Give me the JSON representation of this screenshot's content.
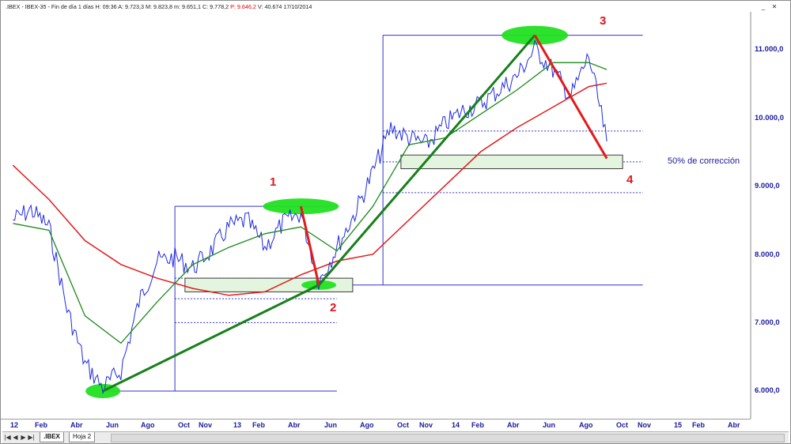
{
  "window": {
    "title_parts": [
      ".IBEX - IBEX-35 - Fin de día 1 días",
      "H: 09:36",
      "A: 9.723,3",
      "M: 9.823,8",
      "m: 9.651,1",
      "C: 9.778,2",
      "P: 9.646,2",
      "V: 40.674",
      "17/10/2014"
    ],
    "highlight_index": 6,
    "minimize_glyph": "_",
    "close_glyph": "✕"
  },
  "y_axis": {
    "tick_labels": [
      "11.000,0",
      "10.000,0",
      "9.000,0",
      "8.000,0",
      "7.000,0",
      "6.000,0"
    ]
  },
  "x_axis": {
    "tick_labels": [
      "12",
      "Feb",
      "Abr",
      "Jun",
      "Ago",
      "Oct",
      "Nov",
      "13",
      "Feb",
      "Abr",
      "Jun",
      "Ago",
      "Oct",
      "Nov",
      "14",
      "Feb",
      "Abr",
      "Jun",
      "Ago",
      "Oct",
      "Nov",
      "15",
      "Feb",
      "Abr"
    ]
  },
  "annotations": {
    "point_1": "1",
    "point_2": "2",
    "point_3": "3",
    "point_4": "4",
    "correction_label": "50% de corrección"
  },
  "tabs": {
    "nav_first": "|◀",
    "nav_prev": "◀",
    "nav_next": "▶",
    "nav_last": "▶|",
    "items": [
      ".IBEX",
      "Hoja 2"
    ]
  },
  "colors": {
    "price": "#1f2be0",
    "ma_short": "#1b8a1b",
    "ma_long": "#e41a1a",
    "trend_green": "#16801a",
    "trend_red": "#e41a1a",
    "zone_fill": "#e3f5de",
    "highlight_green": "#22e022",
    "box_line": "#3030d0",
    "axis_text": "#1a1a9e"
  },
  "chart_data": {
    "type": "line",
    "title": "",
    "instrument": "IBEX-35",
    "y_ticks": [
      6000,
      7000,
      8000,
      9000,
      10000,
      11000
    ],
    "price_series": [
      [
        "2012-01",
        8500
      ],
      [
        "2012-02",
        8650
      ],
      [
        "2012-03",
        8400
      ],
      [
        "2012-04",
        7200
      ],
      [
        "2012-05",
        6400
      ],
      [
        "2012-06",
        6050
      ],
      [
        "2012-07",
        6300
      ],
      [
        "2012-08",
        7300
      ],
      [
        "2012-09",
        7900
      ],
      [
        "2012-10",
        7950
      ],
      [
        "2012-11",
        7800
      ],
      [
        "2012-12",
        8050
      ],
      [
        "2013-01",
        8400
      ],
      [
        "2013-02",
        8500
      ],
      [
        "2013-03",
        8100
      ],
      [
        "2013-04",
        8450
      ],
      [
        "2013-05",
        8600
      ],
      [
        "2013-06",
        7600
      ],
      [
        "2013-07",
        8100
      ],
      [
        "2013-08",
        8600
      ],
      [
        "2013-09",
        9200
      ],
      [
        "2013-10",
        9850
      ],
      [
        "2013-11",
        9700
      ],
      [
        "2013-12",
        9600
      ],
      [
        "2014-01",
        9900
      ],
      [
        "2014-02",
        10100
      ],
      [
        "2014-03",
        10200
      ],
      [
        "2014-04",
        10400
      ],
      [
        "2014-05",
        10600
      ],
      [
        "2014-06",
        11000
      ],
      [
        "2014-07",
        10700
      ],
      [
        "2014-08",
        10300
      ],
      [
        "2014-09",
        10900
      ],
      [
        "2014-10",
        9650
      ]
    ],
    "ma_short_series": [
      [
        "2012-01",
        8450
      ],
      [
        "2012-03",
        8350
      ],
      [
        "2012-05",
        7100
      ],
      [
        "2012-07",
        6700
      ],
      [
        "2012-09",
        7300
      ],
      [
        "2012-11",
        7850
      ],
      [
        "2013-01",
        8100
      ],
      [
        "2013-03",
        8300
      ],
      [
        "2013-05",
        8400
      ],
      [
        "2013-07",
        8050
      ],
      [
        "2013-09",
        8700
      ],
      [
        "2013-11",
        9600
      ],
      [
        "2014-01",
        9700
      ],
      [
        "2014-03",
        10050
      ],
      [
        "2014-05",
        10400
      ],
      [
        "2014-07",
        10800
      ],
      [
        "2014-09",
        10800
      ],
      [
        "2014-10",
        10700
      ]
    ],
    "ma_long_series": [
      [
        "2012-01",
        9300
      ],
      [
        "2012-03",
        8800
      ],
      [
        "2012-05",
        8200
      ],
      [
        "2012-07",
        7850
      ],
      [
        "2012-09",
        7650
      ],
      [
        "2012-11",
        7500
      ],
      [
        "2013-01",
        7400
      ],
      [
        "2013-03",
        7450
      ],
      [
        "2013-05",
        7700
      ],
      [
        "2013-07",
        7900
      ],
      [
        "2013-09",
        8000
      ],
      [
        "2013-11",
        8500
      ],
      [
        "2014-01",
        9000
      ],
      [
        "2014-03",
        9500
      ],
      [
        "2014-05",
        9850
      ],
      [
        "2014-07",
        10150
      ],
      [
        "2014-09",
        10450
      ],
      [
        "2014-10",
        10500
      ]
    ],
    "pivots": [
      {
        "label": "",
        "date": "2012-06",
        "value": 6000
      },
      {
        "label": "1",
        "date": "2013-05",
        "value": 8700
      },
      {
        "label": "2",
        "date": "2013-06",
        "value": 7550
      },
      {
        "label": "3",
        "date": "2014-06",
        "value": 11200
      },
      {
        "label": "4",
        "date": "2014-10",
        "value": 9400
      }
    ],
    "correction_zones": [
      {
        "from": "2012-11",
        "to": "2013-07",
        "low": 7450,
        "high": 7650
      },
      {
        "from": "2013-11",
        "to": "2014-10",
        "low": 9250,
        "high": 9450
      }
    ],
    "retracement_levels": [
      7650,
      7350,
      7000,
      9800,
      9350,
      8900
    ]
  }
}
